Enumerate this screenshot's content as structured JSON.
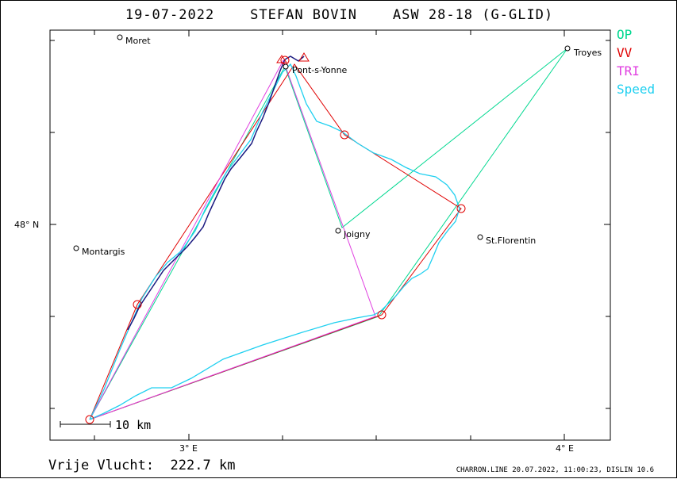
{
  "title": {
    "date": "19-07-2022",
    "pilot": "STEFAN BOVIN",
    "glider": "ASW 28-18 (G-GLID)"
  },
  "legend": [
    {
      "label": "OP",
      "color": "#00d890"
    },
    {
      "label": "VV",
      "color": "#e00000"
    },
    {
      "label": "TRI",
      "color": "#e040e0"
    },
    {
      "label": "Speed",
      "color": "#20d0f0"
    }
  ],
  "axes": {
    "lon_ticks": [
      "3° E",
      "4° E"
    ],
    "lat_ticks": [
      "48° N"
    ]
  },
  "towns": [
    "Moret",
    "Pont-s-Yonne",
    "Troyes",
    "Joigny",
    "Montargis",
    "St.Florentin"
  ],
  "scale_bar": "10 km",
  "footer": {
    "distance_label": "Vrije Vlucht:",
    "distance_value": "222.7 km",
    "credit": "CHARRON.LINE 20.07.2022, 11:00:23, DISLIN 10.6"
  }
}
